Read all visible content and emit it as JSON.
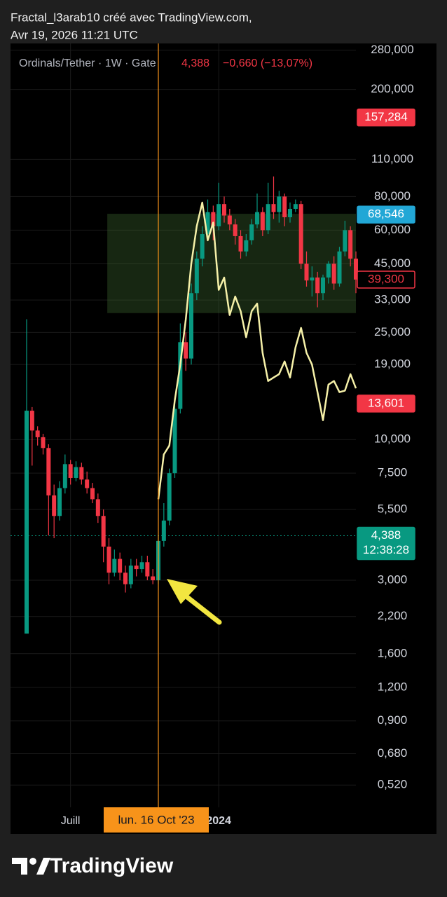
{
  "header": {
    "line1": "Fractal_l3arab10 créé avec TradingView.com,",
    "line2": "Avr 19, 2026 11:21 UTC"
  },
  "brand": "TradingView",
  "chart_data": {
    "type": "candlestick",
    "symbol": "Ordinals/Tether · 1W · Gate",
    "last": {
      "value": 4.388,
      "label": "4,388"
    },
    "change": "−0,660 (−13,07%)",
    "log_scale": true,
    "grid": true,
    "up_color": "#089981",
    "down_color": "#f23645",
    "ylim": [
      0.435,
      300
    ],
    "yticks": [
      {
        "value": 280,
        "label": "280,000"
      },
      {
        "value": 200,
        "label": "200,000"
      },
      {
        "value": 110,
        "label": "110,000"
      },
      {
        "value": 80,
        "label": "80,000"
      },
      {
        "value": 60,
        "label": "60,000"
      },
      {
        "value": 45,
        "label": "45,000"
      },
      {
        "value": 33,
        "label": "33,000"
      },
      {
        "value": 25,
        "label": "25,000"
      },
      {
        "value": 19,
        "label": "19,000"
      },
      {
        "value": 10,
        "label": "10,000"
      },
      {
        "value": 7.5,
        "label": "7,500"
      },
      {
        "value": 5.5,
        "label": "5,500"
      },
      {
        "value": 3,
        "label": "3,000"
      },
      {
        "value": 2.2,
        "label": "2,200"
      },
      {
        "value": 1.6,
        "label": "1,600"
      },
      {
        "value": 1.2,
        "label": "1,200"
      },
      {
        "value": 0.9,
        "label": "0,900"
      },
      {
        "value": 0.68,
        "label": "0,680"
      },
      {
        "value": 0.52,
        "label": "0,520"
      }
    ],
    "xticks": [
      {
        "value": 8,
        "label": "Juill"
      },
      {
        "value": 35,
        "label": "2024"
      }
    ],
    "crosshair": {
      "value": 24,
      "label": "lun. 16 Oct '23",
      "color": "#f7931a"
    },
    "open": [
      1.9,
      12.8,
      10.8,
      10.2,
      9.3,
      6.2,
      5.2,
      6.6,
      8.1,
      7.2,
      7.9,
      7.1,
      6.6,
      6.0,
      5.2,
      4.0,
      3.2,
      3.6,
      3.2,
      2.9,
      3.4,
      3.3,
      3.5,
      3.1,
      3.0,
      4.2,
      5.0,
      7.5,
      13,
      23,
      20,
      35,
      47,
      58,
      70,
      62,
      75,
      68,
      63,
      57,
      50,
      55,
      63,
      70,
      60,
      75,
      70,
      80,
      67,
      72,
      75,
      45,
      39,
      40,
      35,
      40,
      45,
      38,
      50,
      60,
      47
    ],
    "high": [
      28,
      13.2,
      11.2,
      10.5,
      9.6,
      6.8,
      7.0,
      8.8,
      8.4,
      8.3,
      8.2,
      7.6,
      6.9,
      6.3,
      5.5,
      4.3,
      3.9,
      3.8,
      3.4,
      3.6,
      3.6,
      3.7,
      3.7,
      3.3,
      4.4,
      5.8,
      7.8,
      14,
      27,
      25,
      38,
      50,
      62,
      78,
      74,
      90,
      80,
      72,
      66,
      60,
      58,
      66,
      82,
      73,
      90,
      95,
      84,
      82,
      76,
      78,
      77,
      50,
      44,
      42,
      41,
      46,
      48,
      52,
      65,
      62,
      50
    ],
    "low": [
      1.9,
      8,
      9.5,
      8.8,
      4.4,
      4.3,
      5.0,
      6.3,
      6.8,
      7.0,
      6.8,
      6.3,
      5.8,
      4.9,
      3.5,
      2.9,
      3.1,
      3.0,
      2.7,
      2.8,
      3.1,
      3.2,
      3.0,
      2.9,
      2.9,
      4.0,
      4.8,
      7.2,
      12.5,
      18,
      19,
      33,
      44,
      55,
      55,
      60,
      64,
      60,
      53,
      47,
      48,
      53,
      61,
      57,
      58,
      66,
      64,
      62,
      64,
      70,
      43,
      37,
      34,
      31,
      33,
      38,
      36,
      37,
      48,
      44,
      35
    ],
    "close": [
      12.8,
      10.8,
      10.2,
      9.3,
      6.2,
      5.2,
      6.6,
      8.1,
      7.2,
      7.9,
      7.1,
      6.6,
      6.0,
      5.2,
      4.0,
      3.2,
      3.6,
      3.2,
      2.9,
      3.4,
      3.3,
      3.5,
      3.1,
      3.0,
      4.2,
      5.0,
      7.5,
      13,
      23,
      20,
      35,
      47,
      58,
      70,
      62,
      75,
      68,
      63,
      57,
      50,
      55,
      63,
      70,
      60,
      75,
      70,
      80,
      67,
      72,
      75,
      45,
      39,
      40,
      35,
      40,
      45,
      38,
      50,
      60,
      47,
      39.3
    ],
    "overlay": {
      "color": "#f5f0a8",
      "values": [
        null,
        null,
        null,
        null,
        null,
        null,
        null,
        null,
        null,
        null,
        null,
        null,
        null,
        null,
        null,
        null,
        null,
        null,
        null,
        null,
        null,
        null,
        null,
        null,
        6.0,
        8.8,
        9.5,
        14,
        19,
        28,
        45,
        62,
        76,
        55,
        64,
        36,
        40,
        29,
        34,
        30,
        24,
        30,
        32,
        21,
        16.5,
        17,
        17.5,
        19.5,
        17,
        22,
        26,
        21,
        19,
        15,
        11.8,
        16,
        16.5,
        15,
        15.2,
        17.5,
        15.5
      ]
    },
    "zone": {
      "start": 14.7,
      "end": 60,
      "low": 29.5,
      "high": 69,
      "color": "rgba(70,120,55,0.32)"
    },
    "price_labels": [
      {
        "value": 157.284,
        "label": "157,284",
        "color": "#f23645",
        "style": "fill"
      },
      {
        "value": 68.546,
        "label": "68,546",
        "color": "#22a7d6",
        "style": "fill"
      },
      {
        "value": 39.3,
        "label": "39,300",
        "color": "#f23645",
        "style": "outline"
      },
      {
        "value": 13.601,
        "label": "13,601",
        "color": "#f23645",
        "style": "fill"
      },
      {
        "value": 4.388,
        "label": "4,388",
        "sub": "12:38:28",
        "color": "#089981",
        "style": "fill"
      }
    ]
  }
}
